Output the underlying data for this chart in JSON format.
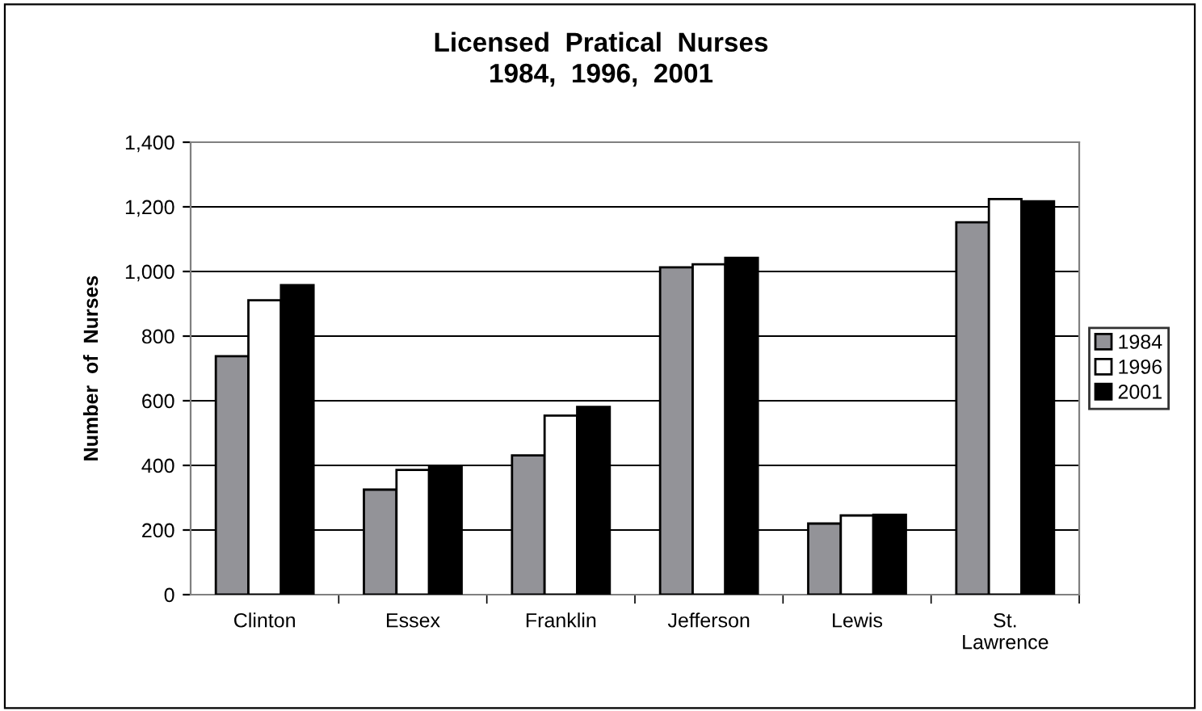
{
  "chart_data": {
    "type": "bar",
    "title": "Licensed  Pratical  Nurses\n1984,  1996,  2001",
    "ylabel": "Number  of  Nurses",
    "categories": [
      "Clinton",
      "Essex",
      "Franklin",
      "Jefferson",
      "Lewis",
      "St.\nLawrence"
    ],
    "series": [
      {
        "name": "1984",
        "color": "#939398",
        "values": [
          738,
          325,
          431,
          1013,
          220,
          1152
        ]
      },
      {
        "name": "1996",
        "color": "#ffffff",
        "values": [
          911,
          386,
          554,
          1022,
          245,
          1224
        ]
      },
      {
        "name": "2001",
        "color": "#000000",
        "values": [
          958,
          397,
          581,
          1042,
          247,
          1217
        ]
      }
    ],
    "ylim": [
      0,
      1400
    ],
    "yticks": [
      {
        "value": 0,
        "label": "0"
      },
      {
        "value": 200,
        "label": "200"
      },
      {
        "value": 400,
        "label": "400"
      },
      {
        "value": 600,
        "label": "600"
      },
      {
        "value": 800,
        "label": "800"
      },
      {
        "value": 1000,
        "label": "1,000"
      },
      {
        "value": 1200,
        "label": "1,200"
      },
      {
        "value": 1400,
        "label": "1,400"
      }
    ],
    "grid": "y",
    "legend": "right"
  }
}
